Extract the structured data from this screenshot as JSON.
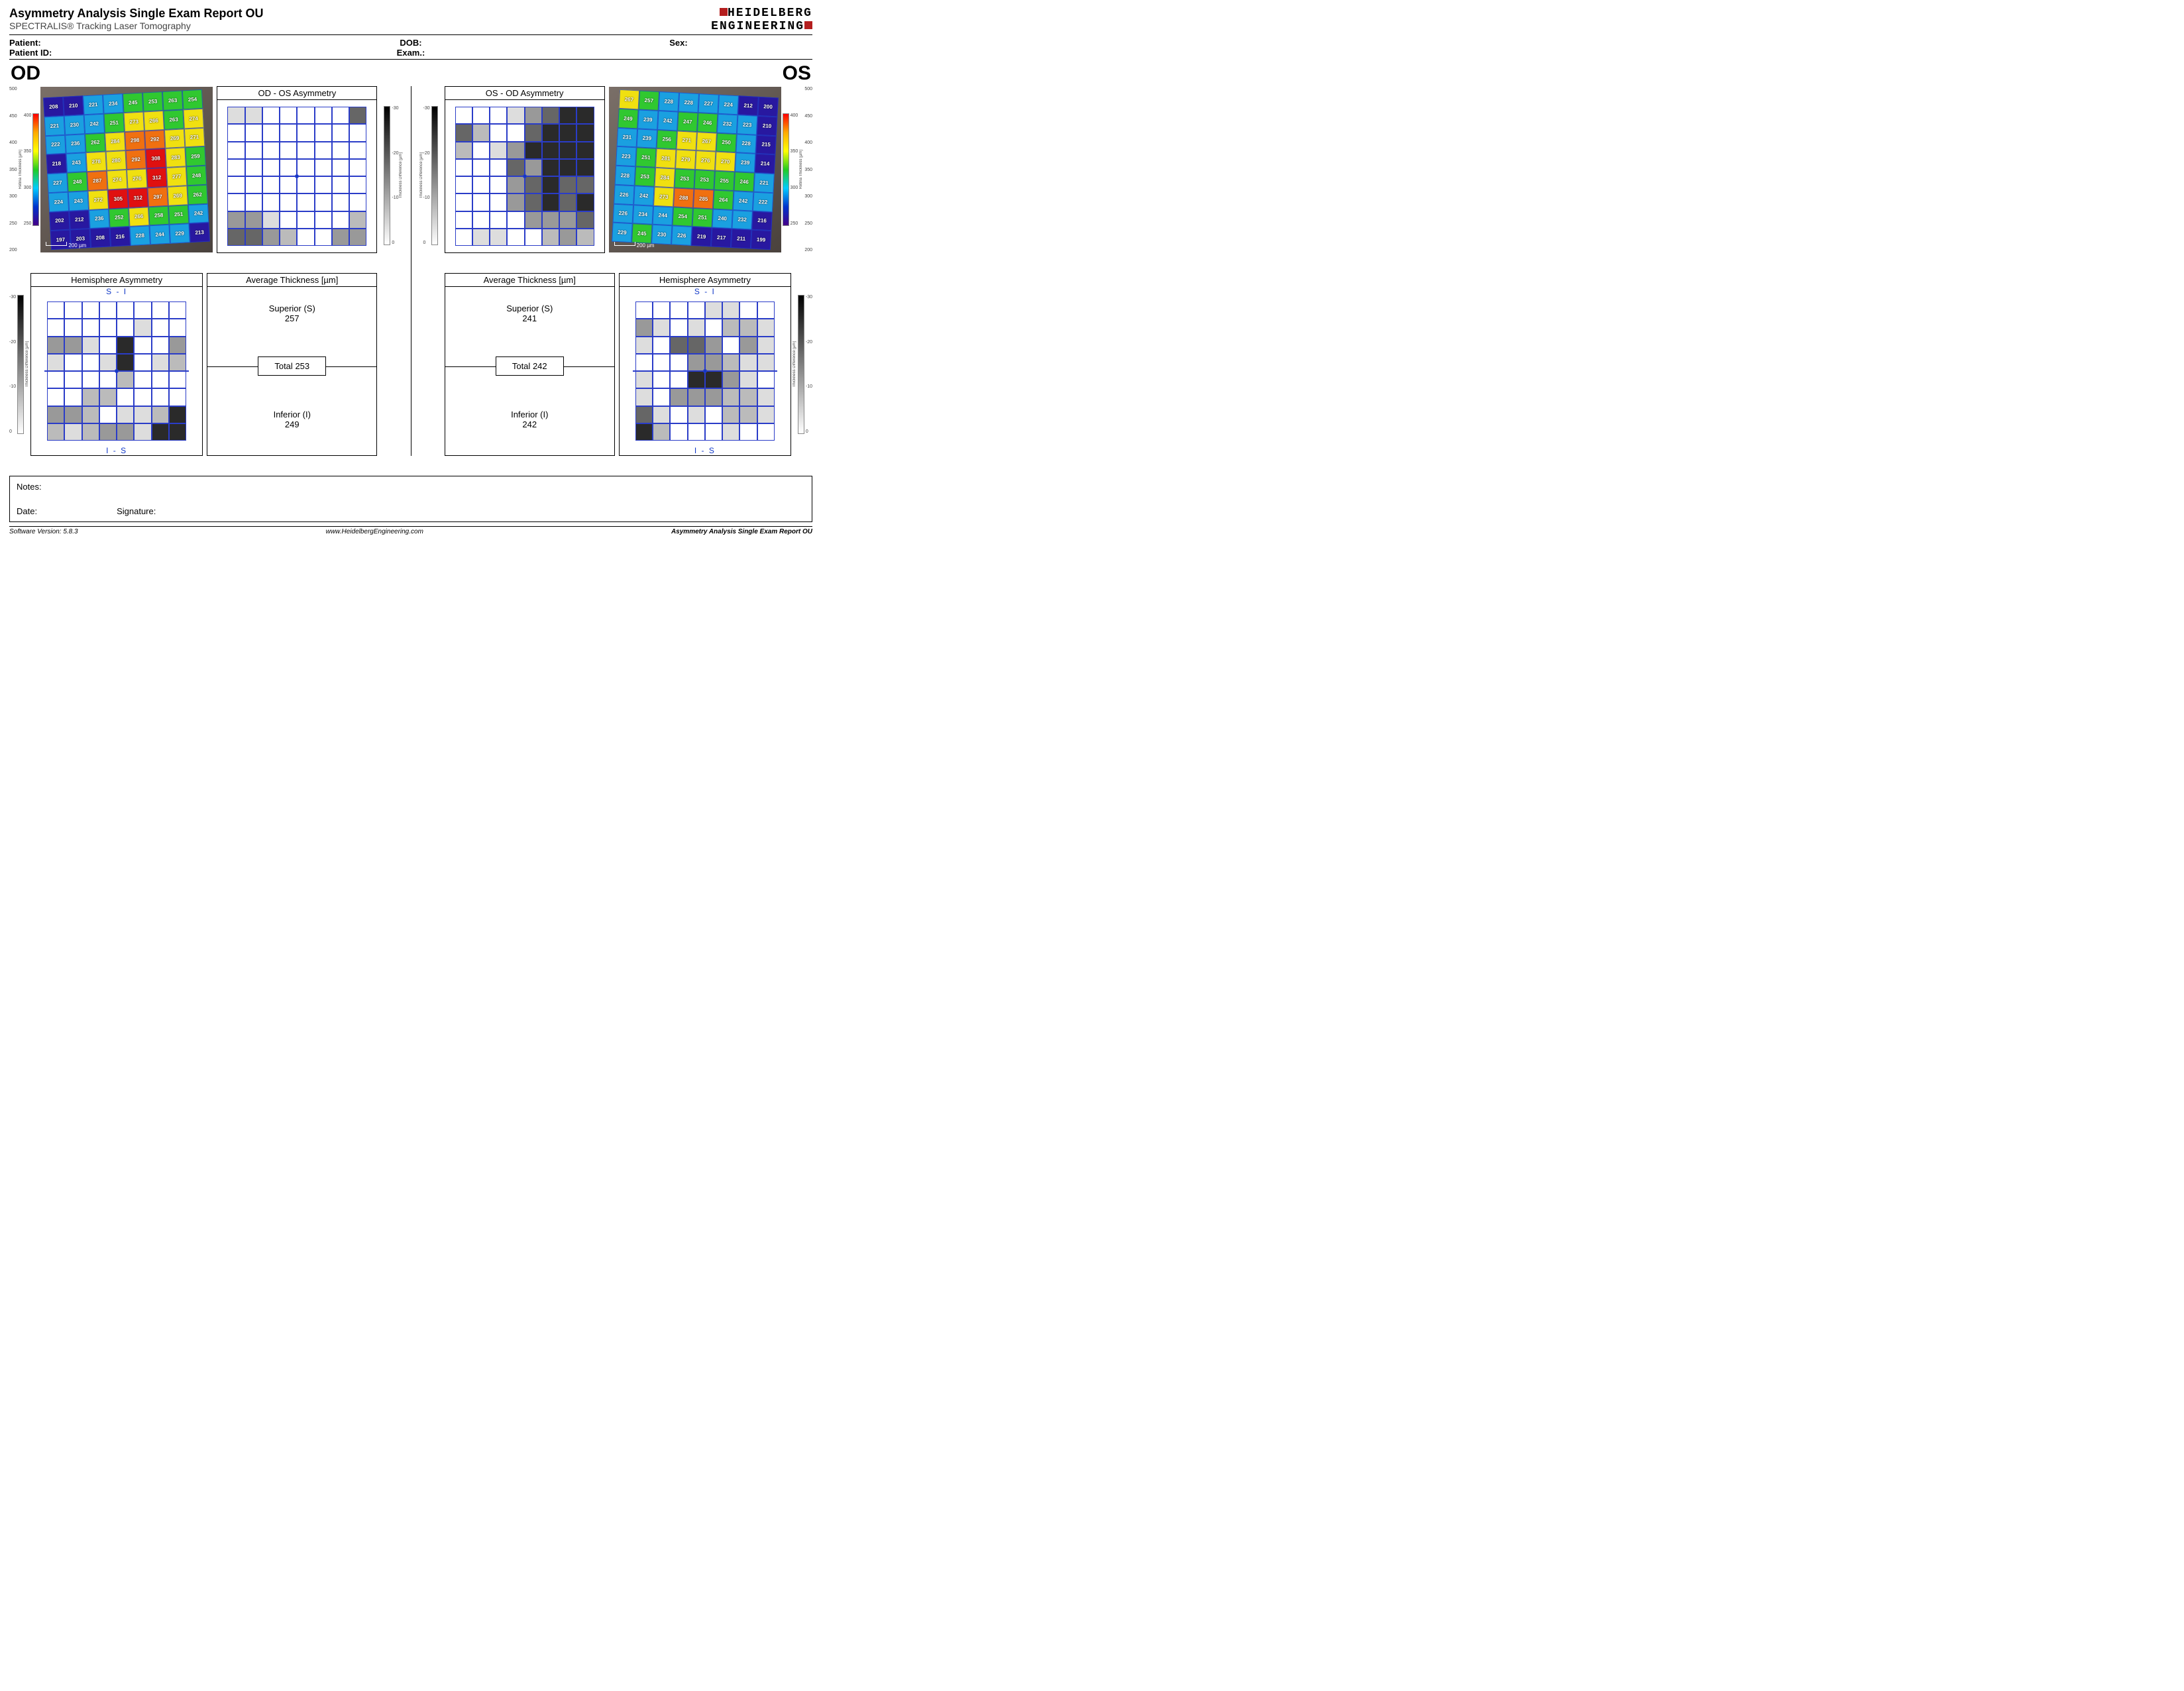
{
  "header": {
    "title": "Asymmetry Analysis Single Exam Report OU",
    "subtitle": "SPECTRALIS® Tracking Laser Tomography",
    "logo_line1": "HEIDELBERG",
    "logo_line2": "ENGINEERING",
    "logo_sq_red": "#b41e1e",
    "logo_sq_gray": "#8a8a8a"
  },
  "patient": {
    "patient_label": "Patient:",
    "patient_id_label": "Patient ID:",
    "dob_label": "DOB:",
    "exam_label": "Exam.:",
    "sex_label": "Sex:"
  },
  "eyes": {
    "od": "OD",
    "os": "OS"
  },
  "thickness_axis": {
    "ticks": [
      "500",
      "450",
      "400",
      "350",
      "300",
      "250",
      "200"
    ]
  },
  "colorbar": {
    "label": "Retina Thickness [µm]",
    "ticks": [
      "400",
      "350",
      "300",
      "250"
    ]
  },
  "od_thickness_grid": [
    [
      "208",
      "210",
      "221",
      "234",
      "245",
      "253",
      "263",
      "254"
    ],
    [
      "221",
      "230",
      "242",
      "251",
      "273",
      "266",
      "263",
      "274"
    ],
    [
      "222",
      "236",
      "262",
      "284",
      "298",
      "292",
      "269",
      "271"
    ],
    [
      "218",
      "243",
      "278",
      "280",
      "292",
      "308",
      "283",
      "259"
    ],
    [
      "227",
      "248",
      "287",
      "274",
      "276",
      "312",
      "277",
      "248"
    ],
    [
      "224",
      "243",
      "272",
      "305",
      "312",
      "297",
      "269",
      "262"
    ],
    [
      "202",
      "212",
      "236",
      "252",
      "266",
      "258",
      "251",
      "242"
    ],
    [
      "197",
      "203",
      "208",
      "216",
      "228",
      "244",
      "229",
      "213"
    ]
  ],
  "os_thickness_grid": [
    [
      "267",
      "257",
      "228",
      "228",
      "227",
      "224",
      "212",
      "200"
    ],
    [
      "249",
      "239",
      "242",
      "247",
      "246",
      "232",
      "223",
      "210"
    ],
    [
      "231",
      "239",
      "256",
      "271",
      "267",
      "250",
      "228",
      "215"
    ],
    [
      "223",
      "251",
      "281",
      "279",
      "276",
      "270",
      "239",
      "214"
    ],
    [
      "228",
      "253",
      "284",
      "253",
      "253",
      "255",
      "246",
      "221"
    ],
    [
      "226",
      "242",
      "273",
      "288",
      "285",
      "264",
      "242",
      "222"
    ],
    [
      "226",
      "234",
      "244",
      "254",
      "251",
      "240",
      "232",
      "216"
    ],
    [
      "229",
      "245",
      "230",
      "226",
      "219",
      "217",
      "211",
      "199"
    ]
  ],
  "scalebar": "200 µm",
  "od_os_asym": {
    "title": "OD - OS Asymmetry",
    "scale_label": "Thickness Difference [µm]",
    "scale_ticks": [
      "-30",
      "-20",
      "-10",
      "0"
    ],
    "pattern": [
      [
        1,
        1,
        0,
        0,
        0,
        0,
        0,
        4
      ],
      [
        0,
        0,
        0,
        0,
        0,
        0,
        0,
        0
      ],
      [
        0,
        0,
        0,
        0,
        0,
        0,
        0,
        0
      ],
      [
        0,
        0,
        0,
        0,
        0,
        0,
        0,
        0
      ],
      [
        0,
        0,
        0,
        0,
        0,
        0,
        0,
        0
      ],
      [
        0,
        0,
        0,
        0,
        0,
        0,
        0,
        0
      ],
      [
        3,
        3,
        1,
        0,
        0,
        0,
        0,
        2
      ],
      [
        4,
        4,
        3,
        2,
        0,
        0,
        3,
        3
      ]
    ]
  },
  "os_od_asym": {
    "title": "OS - OD Asymmetry",
    "pattern": [
      [
        0,
        0,
        0,
        1,
        3,
        4,
        5,
        5
      ],
      [
        4,
        2,
        0,
        0,
        4,
        5,
        5,
        5
      ],
      [
        2,
        0,
        1,
        3,
        5,
        5,
        5,
        5
      ],
      [
        0,
        0,
        0,
        4,
        3,
        5,
        5,
        5
      ],
      [
        0,
        0,
        0,
        3,
        4,
        5,
        4,
        4
      ],
      [
        0,
        0,
        0,
        3,
        4,
        5,
        4,
        5
      ],
      [
        0,
        0,
        0,
        0,
        3,
        3,
        3,
        4
      ],
      [
        0,
        1,
        1,
        0,
        0,
        2,
        3,
        2
      ]
    ]
  },
  "gray_shades": [
    "#ffffff",
    "#dddddd",
    "#bbbbbb",
    "#999999",
    "#666666",
    "#2a2a2a"
  ],
  "hemi": {
    "title": "Hemisphere Asymmetry",
    "si": "S - I",
    "is": "I - S",
    "scale_label": "Thickness Difference [µm]",
    "scale_ticks": [
      "-30",
      "-20",
      "-10",
      "0"
    ],
    "od_pattern": [
      [
        0,
        0,
        0,
        0,
        0,
        0,
        0,
        0
      ],
      [
        0,
        0,
        0,
        0,
        0,
        1,
        0,
        0
      ],
      [
        3,
        3,
        1,
        0,
        5,
        0,
        0,
        3
      ],
      [
        1,
        0,
        0,
        1,
        6,
        0,
        1,
        2
      ],
      [
        0,
        0,
        0,
        0,
        2,
        0,
        0,
        0
      ],
      [
        0,
        0,
        2,
        2,
        0,
        0,
        0,
        0
      ],
      [
        3,
        3,
        2,
        0,
        1,
        1,
        2,
        5
      ],
      [
        2,
        1,
        2,
        3,
        3,
        1,
        5,
        5
      ]
    ],
    "os_pattern": [
      [
        0,
        0,
        0,
        0,
        1,
        1,
        0,
        0
      ],
      [
        3,
        1,
        0,
        1,
        0,
        2,
        2,
        1
      ],
      [
        1,
        0,
        4,
        4,
        3,
        0,
        3,
        1
      ],
      [
        0,
        0,
        0,
        3,
        3,
        2,
        1,
        1
      ],
      [
        1,
        0,
        0,
        5,
        5,
        3,
        1,
        0
      ],
      [
        1,
        0,
        3,
        3,
        3,
        2,
        2,
        1
      ],
      [
        4,
        1,
        0,
        1,
        0,
        2,
        2,
        1
      ],
      [
        5,
        2,
        0,
        0,
        0,
        1,
        0,
        0
      ]
    ]
  },
  "avg": {
    "title": "Average Thickness [µm]",
    "sup_label": "Superior (S)",
    "inf_label": "Inferior (I)",
    "total_label": "Total",
    "od": {
      "sup": "257",
      "total": "253",
      "inf": "249"
    },
    "os": {
      "sup": "241",
      "total": "242",
      "inf": "242"
    }
  },
  "notes": {
    "notes_label": "Notes:",
    "date_label": "Date:",
    "sig_label": "Signature:"
  },
  "footer": {
    "left": "Software Version: 5.8.3",
    "center": "www.HeidelbergEngineering.com",
    "right": "Asymmetry Analysis Single Exam Report OU"
  },
  "heatmap_palette": {
    "low": "#2818a0",
    "mid_low": "#1aa0e0",
    "mid": "#30c830",
    "mid_high": "#f0e010",
    "high": "#f07010",
    "max": "#e01010"
  }
}
